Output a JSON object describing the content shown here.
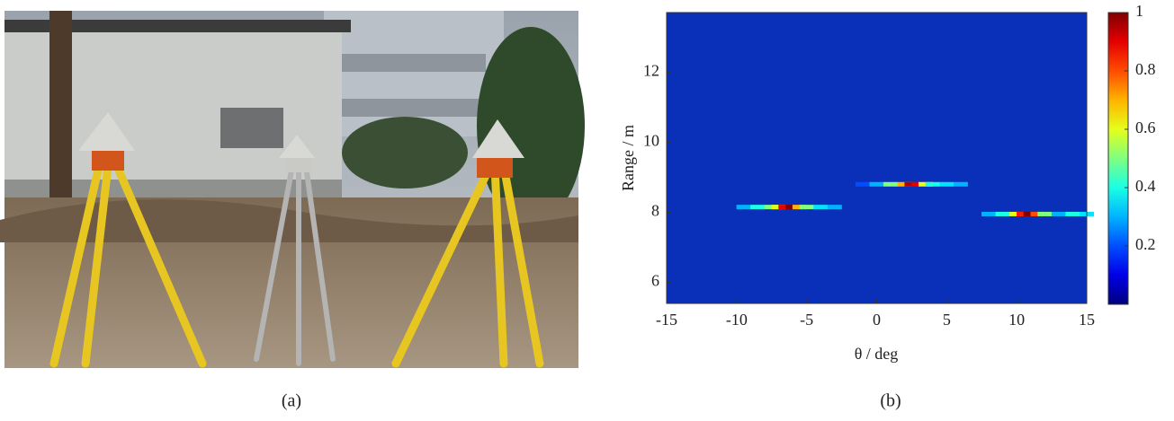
{
  "captions": [
    "(a)",
    "(b)"
  ],
  "chart_data": {
    "type": "heatmap",
    "xlabel": "θ / deg",
    "ylabel": "Range / m",
    "xlim": [
      -15,
      15
    ],
    "xticks": [
      -15,
      -10,
      -5,
      0,
      5,
      10,
      15
    ],
    "ylim": [
      5.4,
      13.7
    ],
    "yticks": [
      6,
      8,
      10,
      12
    ],
    "colorbar": {
      "lim": [
        0,
        1
      ],
      "ticks": [
        0.2,
        0.4,
        0.6,
        0.8,
        1
      ]
    },
    "series": [
      {
        "y": 8.15,
        "x": [
          -9.5,
          -8.5,
          -7.5,
          -7,
          -6.5,
          -6,
          -5.5,
          -5,
          -4,
          -3
        ],
        "values": [
          0.3,
          0.4,
          0.5,
          0.6,
          0.9,
          1,
          0.7,
          0.5,
          0.35,
          0.3
        ]
      },
      {
        "y": 8.8,
        "x": [
          -1,
          0,
          1,
          2,
          2.5,
          3,
          3.5,
          4,
          5,
          6
        ],
        "values": [
          0.2,
          0.3,
          0.5,
          0.7,
          0.95,
          0.9,
          0.6,
          0.4,
          0.35,
          0.3
        ]
      },
      {
        "y": 7.95,
        "x": [
          8,
          9,
          10,
          10.5,
          11,
          11.5,
          12,
          13,
          14,
          15
        ],
        "values": [
          0.3,
          0.4,
          0.6,
          0.85,
          1,
          0.8,
          0.5,
          0.3,
          0.4,
          0.35
        ]
      }
    ]
  }
}
